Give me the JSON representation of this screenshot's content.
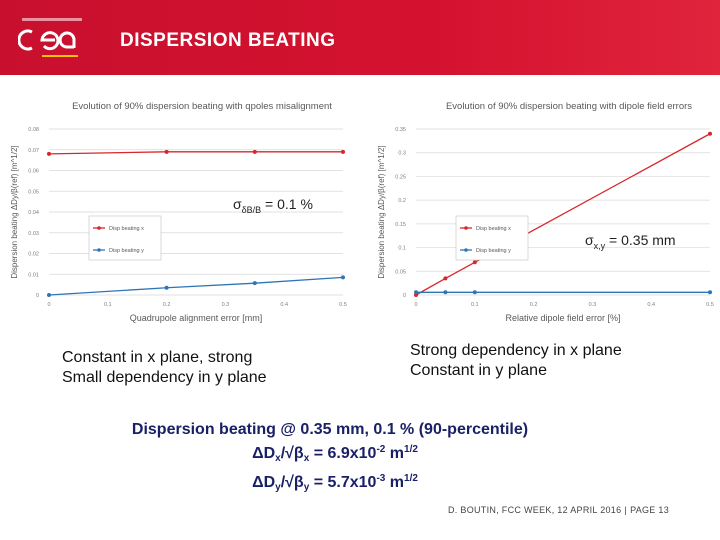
{
  "header": {
    "title": "DISPERSION BEATING",
    "logo_text": "cea"
  },
  "annotations": {
    "left_sigma_main": "σ",
    "left_sigma_sub": "δB/B",
    "left_sigma_value": " = 0.1 %",
    "right_sigma_main": "σ",
    "right_sigma_sub": "x,y",
    "right_sigma_value": " = 0.35 mm"
  },
  "captions": {
    "left_line1": "Constant in x plane, strong",
    "left_line2": "Small dependency in y plane",
    "right_line1": "Strong dependency in x plane",
    "right_line2": "Constant in y plane"
  },
  "summary": {
    "line1": "Dispersion beating @ 0.35 mm, 0.1 % (90-percentile)",
    "x_prefix": "ΔD",
    "x_sub": "x",
    "x_mid": "/√β",
    "x_sub2": "x",
    "x_value": " = 6.9x10",
    "x_exp": "-2",
    "x_unit": " m",
    "x_unit_exp": "1/2",
    "y_prefix": "ΔD",
    "y_sub": "y",
    "y_mid": "/√β",
    "y_sub2": "y",
    "y_value": " = 5.7x10",
    "y_exp": "-3",
    "y_unit": " m",
    "y_unit_exp": "1/2"
  },
  "footer": {
    "text": "D. BOUTIN, FCC WEEK, 12 APRIL 2016",
    "sep": "|",
    "page": "PAGE 13"
  },
  "colors": {
    "header": "#c8102e",
    "series_x": "#d9262c",
    "series_y": "#2e75b6",
    "summary": "#1a2066"
  },
  "chart_data": [
    {
      "type": "line",
      "title": "Evolution of 90% dispersion beating with qpoles misalignment",
      "xlabel": "Quadrupole alignment error [mm]",
      "ylabel": "Dispersion beating ΔDy/β(ref) [m^1/2]",
      "xlim": [
        0,
        0.5
      ],
      "ylim": [
        0,
        0.08
      ],
      "xticks": [
        "0",
        "0.1",
        "0.2",
        "0.3",
        "0.4",
        "0.5"
      ],
      "yticks": [
        "0",
        "0.01",
        "0.02",
        "0.03",
        "0.04",
        "0.05",
        "0.06",
        "0.07",
        "0.08"
      ],
      "legend_position": "center-left",
      "series": [
        {
          "name": "Disp beating x",
          "color": "#d9262c",
          "x": [
            0,
            0.2,
            0.35,
            0.5
          ],
          "y": [
            0.068,
            0.069,
            0.069,
            0.069
          ]
        },
        {
          "name": "Disp beating y",
          "color": "#2e75b6",
          "x": [
            0,
            0.2,
            0.35,
            0.5
          ],
          "y": [
            0.0,
            0.0035,
            0.0057,
            0.0085
          ]
        }
      ]
    },
    {
      "type": "line",
      "title": "Evolution of 90% dispersion beating with dipole field errors",
      "xlabel": "Relative dipole field error [%]",
      "ylabel": "Dispersion beating ΔDy/β(ref) [m^1/2]",
      "xlim": [
        0,
        0.5
      ],
      "ylim": [
        0,
        0.35
      ],
      "xticks": [
        "0",
        "0.1",
        "0.2",
        "0.3",
        "0.4",
        "0.5"
      ],
      "yticks": [
        "0",
        "0.05",
        "0.1",
        "0.15",
        "0.2",
        "0.25",
        "0.3",
        "0.35"
      ],
      "legend_position": "center-left",
      "series": [
        {
          "name": "Disp beating x",
          "color": "#d9262c",
          "x": [
            0,
            0.05,
            0.1,
            0.5
          ],
          "y": [
            0.0,
            0.035,
            0.069,
            0.34
          ]
        },
        {
          "name": "Disp beating y",
          "color": "#2e75b6",
          "x": [
            0,
            0.05,
            0.1,
            0.5
          ],
          "y": [
            0.0057,
            0.0057,
            0.0057,
            0.0057
          ]
        }
      ]
    }
  ]
}
